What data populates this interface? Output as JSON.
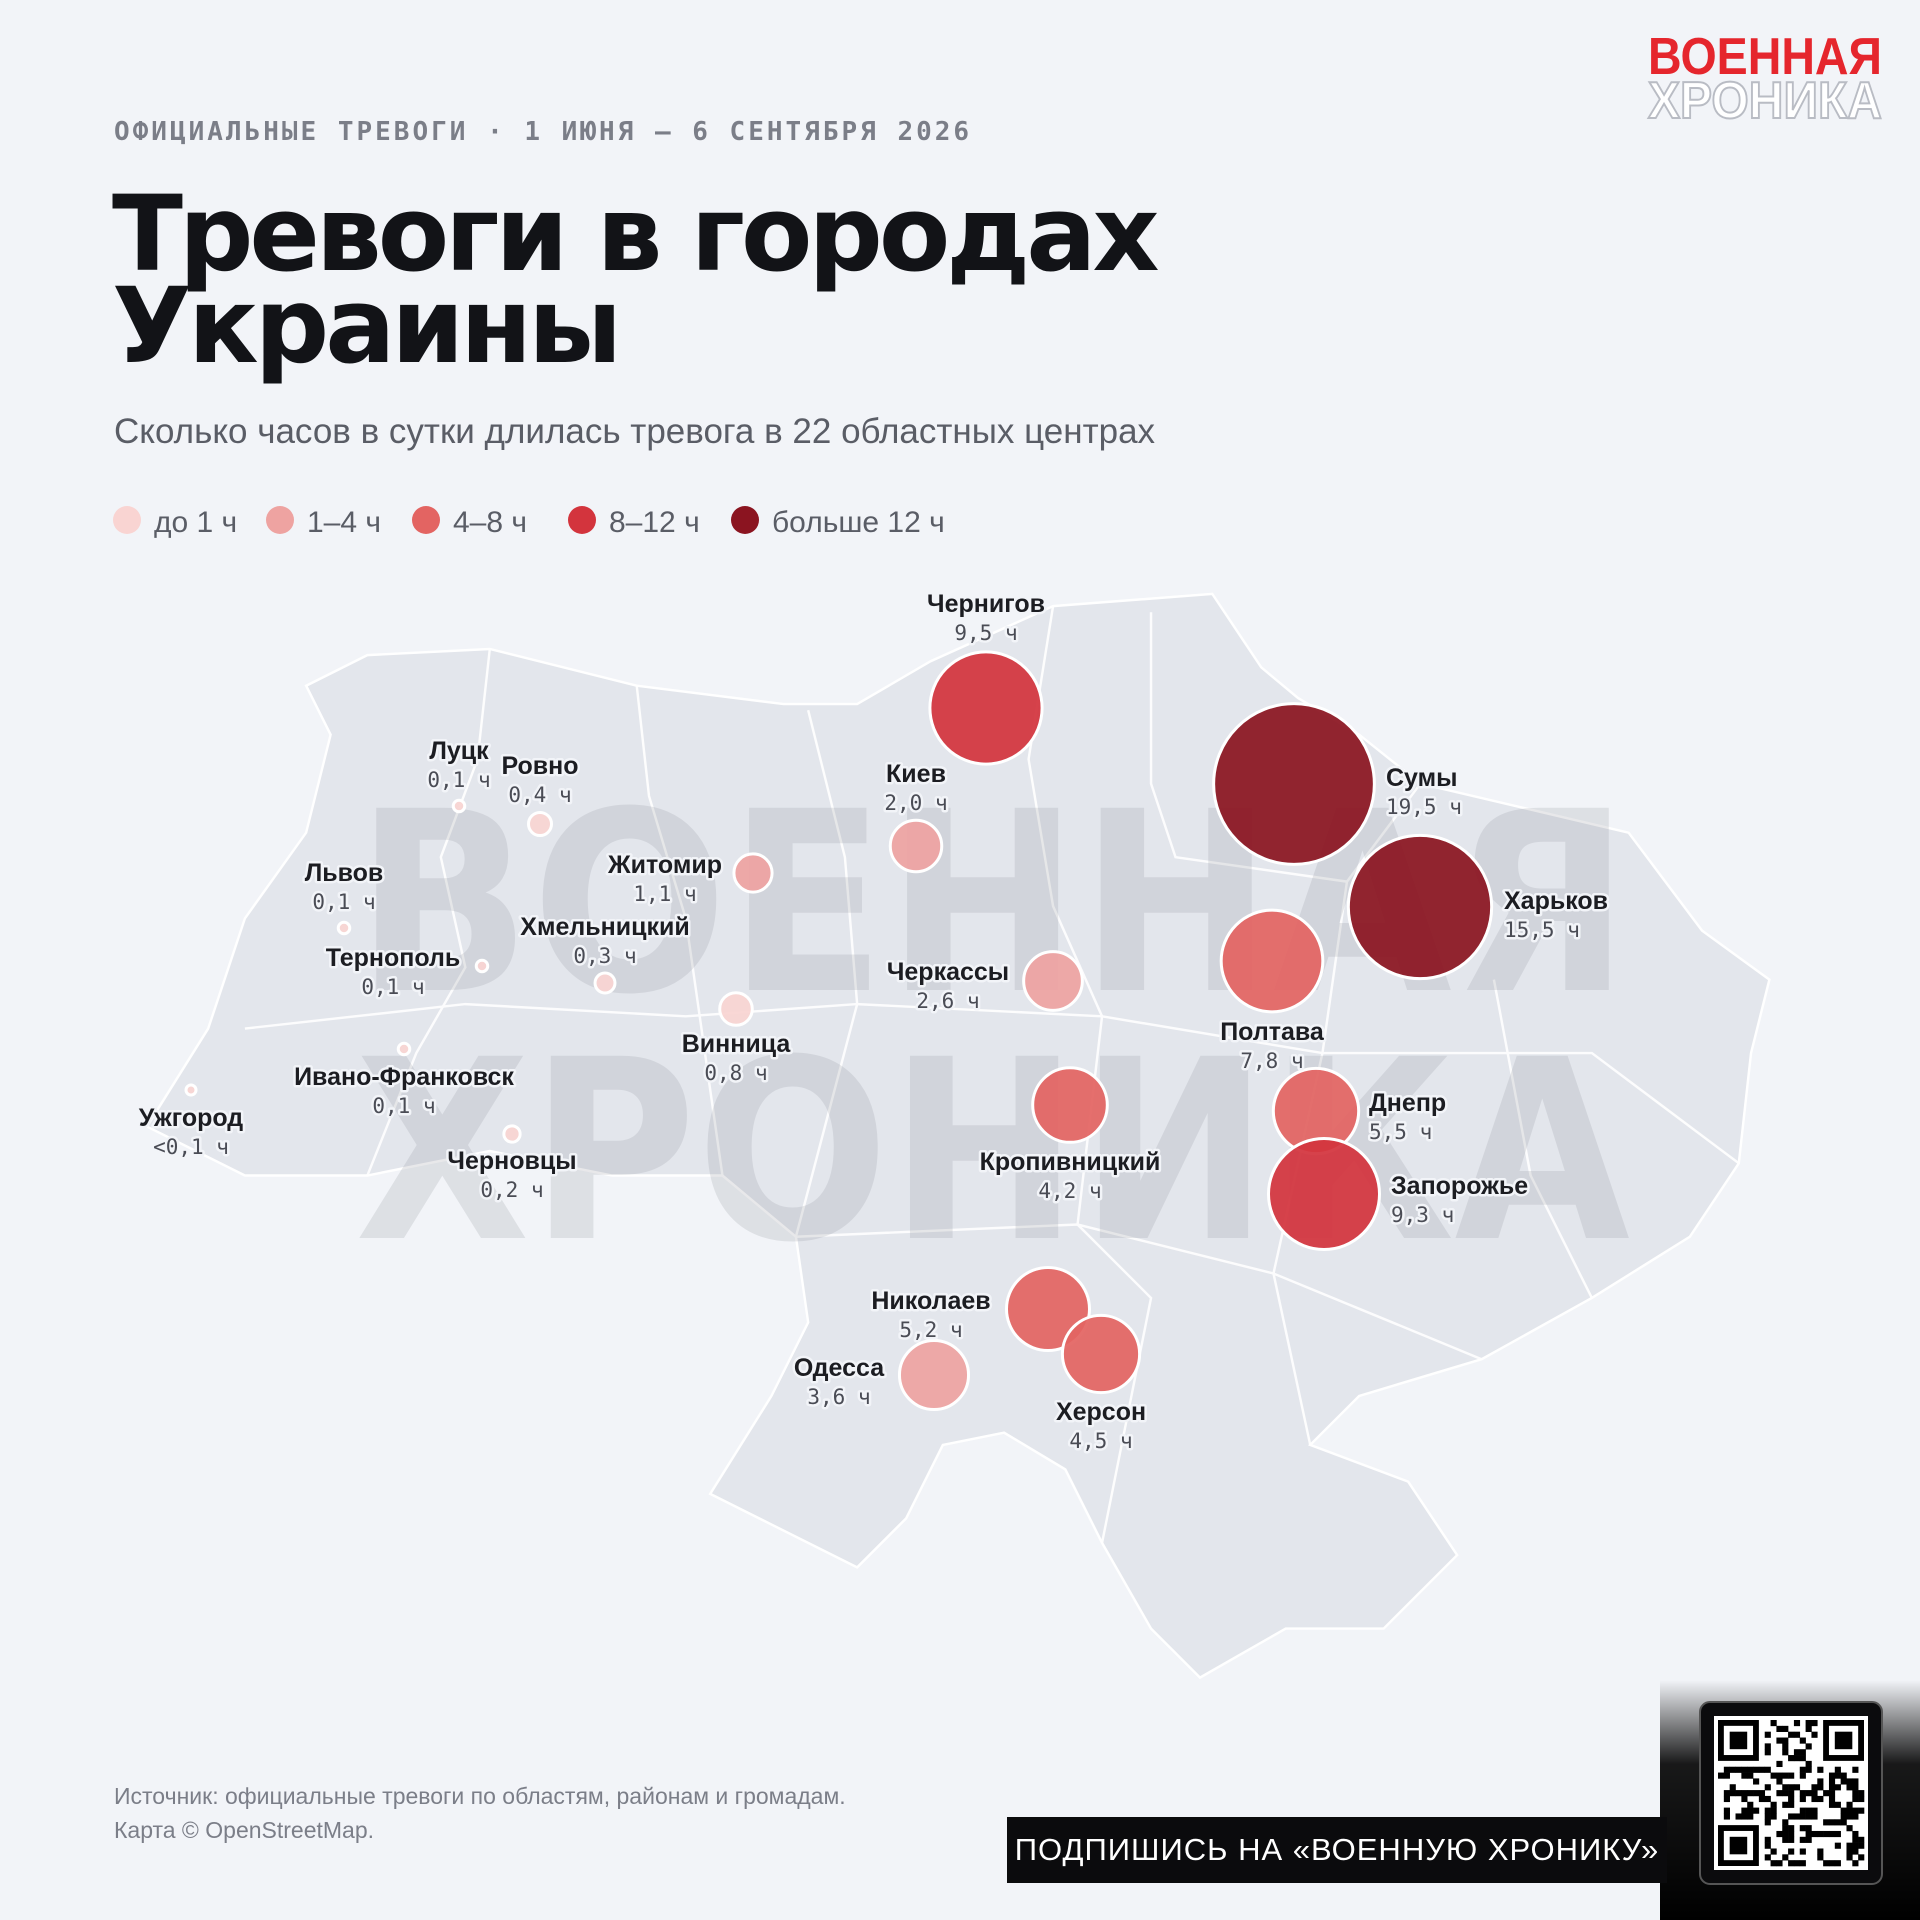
{
  "logo": {
    "line1": "ВОЕННАЯ",
    "line2": "ХРОНИКА"
  },
  "header": {
    "kicker": "ОФИЦИАЛЬНЫЕ ТРЕВОГИ · 1 ИЮНЯ — 6 СЕНТЯБРЯ 2026",
    "title": [
      "Тревоги в городах",
      "Украины"
    ],
    "subtitle": "Сколько часов в сутки длилась тревога в 22 областных центрах"
  },
  "legend": [
    {
      "label": "до 1 ч",
      "color": "#f9d4d2"
    },
    {
      "label": "1–4 ч",
      "color": "#eea3a1"
    },
    {
      "label": "4–8 ч",
      "color": "#e36462"
    },
    {
      "label": "8–12 ч",
      "color": "#d3343d"
    },
    {
      "label": "больше 12 ч",
      "color": "#8b1420"
    }
  ],
  "watermark": [
    "ВОЕННАЯ",
    "ХРОНИКА"
  ],
  "cities": [
    {
      "name": "Чернигов",
      "hours": 9.5,
      "label": "9,5 ч",
      "color": "#d3343d"
    },
    {
      "name": "Сумы",
      "hours": 19.5,
      "label": "19,5 ч",
      "color": "#8b1420"
    },
    {
      "name": "Харьков",
      "hours": 15.5,
      "label": "15,5 ч",
      "color": "#8b1420"
    },
    {
      "name": "Киев",
      "hours": 2.0,
      "label": "2,0 ч",
      "color": "#eea3a1"
    },
    {
      "name": "Житомир",
      "hours": 1.1,
      "label": "1,1 ч",
      "color": "#eea3a1"
    },
    {
      "name": "Луцк",
      "hours": 0.1,
      "label": "0,1 ч",
      "color": "#f9d4d2"
    },
    {
      "name": "Ровно",
      "hours": 0.4,
      "label": "0,4 ч",
      "color": "#f9d4d2"
    },
    {
      "name": "Львов",
      "hours": 0.1,
      "label": "0,1 ч",
      "color": "#f9d4d2"
    },
    {
      "name": "Тернополь",
      "hours": 0.1,
      "label": "0,1 ч",
      "color": "#f9d4d2"
    },
    {
      "name": "Хмельницкий",
      "hours": 0.3,
      "label": "0,3 ч",
      "color": "#f9d4d2"
    },
    {
      "name": "Винница",
      "hours": 0.8,
      "label": "0,8 ч",
      "color": "#f9d4d2"
    },
    {
      "name": "Черкассы",
      "hours": 2.6,
      "label": "2,6 ч",
      "color": "#eea3a1"
    },
    {
      "name": "Полтава",
      "hours": 7.8,
      "label": "7,8 ч",
      "color": "#e36462"
    },
    {
      "name": "Ивано-Франковск",
      "hours": 0.1,
      "label": "0,1 ч",
      "color": "#f9d4d2"
    },
    {
      "name": "Ужгород",
      "hours": 0.05,
      "label": "<0,1 ч",
      "color": "#f9d4d2"
    },
    {
      "name": "Черновцы",
      "hours": 0.2,
      "label": "0,2 ч",
      "color": "#f9d4d2"
    },
    {
      "name": "Кропивницкий",
      "hours": 4.2,
      "label": "4,2 ч",
      "color": "#e36462"
    },
    {
      "name": "Днепр",
      "hours": 5.5,
      "label": "5,5 ч",
      "color": "#e36462"
    },
    {
      "name": "Запорожье",
      "hours": 9.3,
      "label": "9,3 ч",
      "color": "#d3343d"
    },
    {
      "name": "Николаев",
      "hours": 5.2,
      "label": "5,2 ч",
      "color": "#e36462"
    },
    {
      "name": "Херсон",
      "hours": 4.5,
      "label": "4,5 ч",
      "color": "#e36462"
    },
    {
      "name": "Одесса",
      "hours": 3.6,
      "label": "3,6 ч",
      "color": "#eea3a1"
    }
  ],
  "footer": {
    "source": "Источник: официальные тревоги по областям, районам и громадам.",
    "map_credit": "Карта © OpenStreetMap.",
    "subscribe": "ПОДПИШИСЬ НА «ВОЕННУЮ ХРОНИКУ»"
  }
}
